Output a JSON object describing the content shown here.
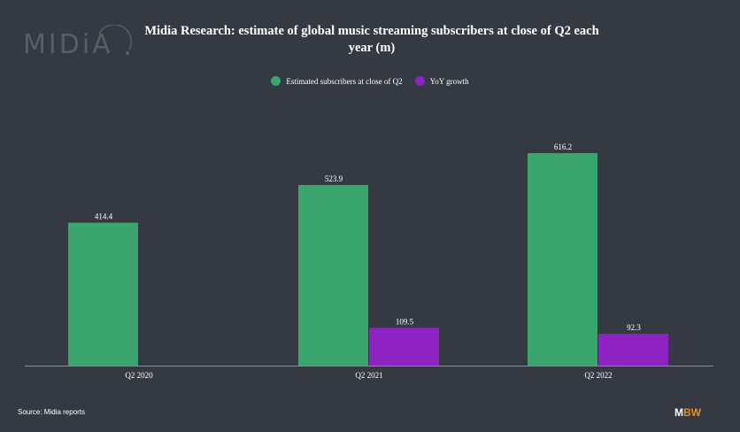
{
  "logo_text": "MIDiA",
  "chart_data": {
    "type": "bar",
    "title": "Midia Research: estimate of global music streaming subscribers at close of Q2 each year (m)",
    "categories": [
      "Q2 2020",
      "Q2 2021",
      "Q2 2022"
    ],
    "series": [
      {
        "name": "Estimated subscribers at close of Q2",
        "color": "#3aa66e",
        "values": [
          414.4,
          523.9,
          616.2
        ]
      },
      {
        "name": "YoY growth",
        "color": "#8e22c2",
        "values": [
          null,
          109.5,
          92.3
        ]
      }
    ],
    "ylim": [
      0,
      616.2
    ],
    "grid": false,
    "legend": "top-center"
  },
  "source": "Source: Midia reports",
  "brand": {
    "m": "M",
    "bw": "BW"
  }
}
